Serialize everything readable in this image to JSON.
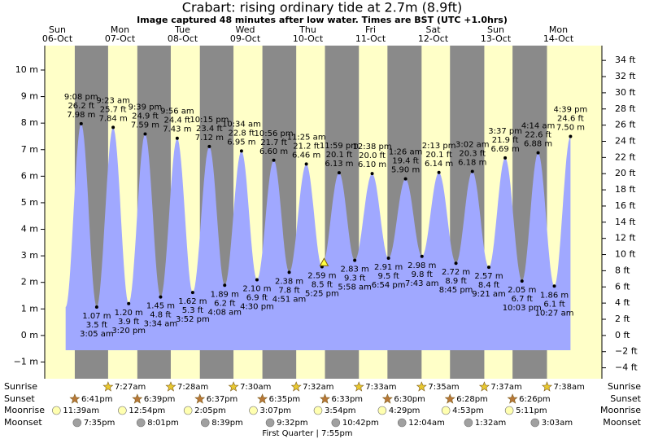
{
  "title": "Crabart: rising  ordinary tide at 2.7m (8.9ft)",
  "subtitle": "Image captured 48 minutes after low water. Times are BST (UTC +1.0hrs)",
  "chart_data": {
    "type": "area",
    "days": [
      {
        "name": "Sun",
        "date": "06-Oct"
      },
      {
        "name": "Mon",
        "date": "07-Oct"
      },
      {
        "name": "Tue",
        "date": "08-Oct"
      },
      {
        "name": "Wed",
        "date": "09-Oct"
      },
      {
        "name": "Thu",
        "date": "10-Oct"
      },
      {
        "name": "Fri",
        "date": "11-Oct"
      },
      {
        "name": "Sat",
        "date": "12-Oct"
      },
      {
        "name": "Sun",
        "date": "13-Oct"
      },
      {
        "name": "Mon",
        "date": "14-Oct"
      }
    ],
    "times": [
      "9:08 pm",
      "3:05 am",
      "9:23 am",
      "3:20 pm",
      "9:39 pm",
      "3:34 am",
      "9:56 am",
      "3:52 pm",
      "10:15 pm",
      "4:08 am",
      "10:34 am",
      "4:30 pm",
      "10:56 pm",
      "4:51 am",
      "11:25 am",
      "5:25 pm",
      "11:59 pm",
      "5:58 am",
      "12:38 pm",
      "6:54 pm",
      "1:26 am",
      "7:43 am",
      "2:13 pm",
      "8:45 pm",
      "3:02 am",
      "9:21 am",
      "3:37 pm",
      "10:03 pm",
      "4:14 am",
      "10:27 am",
      "4:39 pm"
    ],
    "values": [
      7.98,
      1.07,
      7.84,
      1.2,
      7.59,
      1.45,
      7.43,
      1.62,
      7.12,
      1.89,
      6.95,
      2.1,
      6.6,
      2.38,
      6.46,
      2.59,
      6.13,
      2.83,
      6.1,
      2.91,
      5.9,
      2.98,
      6.14,
      2.72,
      6.18,
      2.57,
      6.69,
      2.05,
      6.88,
      1.86,
      7.5
    ],
    "value_labels": [
      "7.98 m",
      "1.07 m",
      "7.84 m",
      "1.20 m",
      "7.59 m",
      "1.45 m",
      "7.43 m",
      "1.62 m",
      "7.12 m",
      "1.89 m",
      "6.95 m",
      "2.10 m",
      "6.60 m",
      "2.38 m",
      "6.46 m",
      "2.59 m",
      "6.13 m",
      "2.83 m",
      "6.10 m",
      "2.91 m",
      "5.90 m",
      "2.98 m",
      "6.14 m",
      "2.72 m",
      "6.18 m",
      "2.57 m",
      "6.69 m",
      "2.05 m",
      "6.88 m",
      "1.86 m",
      "7.50 m"
    ],
    "ft_labels": [
      "26.2 ft",
      "3.5 ft",
      "25.7 ft",
      "3.9 ft",
      "24.9 ft",
      "4.8 ft",
      "24.4 ft",
      "5.3 ft",
      "23.4 ft",
      "6.2 ft",
      "22.8 ft",
      "6.9 ft",
      "21.7 ft",
      "7.8 ft",
      "21.2 ft",
      "8.5 ft",
      "20.1 ft",
      "9.3 ft",
      "20.0 ft",
      "9.5 ft",
      "19.4 ft",
      "9.8 ft",
      "20.1 ft",
      "8.9 ft",
      "20.3 ft",
      "8.4 ft",
      "21.9 ft",
      "6.7 ft",
      "22.6 ft",
      "6.1 ft",
      "24.6 ft"
    ],
    "color": "#a0a8ff",
    "day_color": "#ffffc8",
    "night_color": "#8a8a8a",
    "day_label_color": "#e00000",
    "ylim": [
      -1.63,
      10.92
    ],
    "yticks": [
      {
        "value": -1,
        "label": "−1 m"
      },
      {
        "value": 0,
        "label": "0 m"
      },
      {
        "value": 1,
        "label": "1 m"
      },
      {
        "value": 2,
        "label": "2 m"
      },
      {
        "value": 3,
        "label": "3 m"
      },
      {
        "value": 4,
        "label": "4 m"
      },
      {
        "value": 5,
        "label": "5 m"
      },
      {
        "value": 6,
        "label": "6 m"
      },
      {
        "value": 7,
        "label": "7 m"
      },
      {
        "value": 8,
        "label": "8 m"
      },
      {
        "value": 9,
        "label": "9 m"
      },
      {
        "value": 10,
        "label": "10 m"
      }
    ],
    "y2lim": [
      -5.35,
      35.83
    ],
    "y2ticks": [
      {
        "value": -4,
        "label": "−4 ft"
      },
      {
        "value": -2,
        "label": "−2 ft"
      },
      {
        "value": 0,
        "label": "0 ft"
      },
      {
        "value": 2,
        "label": "2 ft"
      },
      {
        "value": 4,
        "label": "4 ft"
      },
      {
        "value": 6,
        "label": "6 ft"
      },
      {
        "value": 8,
        "label": "8 ft"
      },
      {
        "value": 10,
        "label": "10 ft"
      },
      {
        "value": 12,
        "label": "12 ft"
      },
      {
        "value": 14,
        "label": "14 ft"
      },
      {
        "value": 16,
        "label": "16 ft"
      },
      {
        "value": 18,
        "label": "18 ft"
      },
      {
        "value": 20,
        "label": "20 ft"
      },
      {
        "value": 22,
        "label": "22 ft"
      },
      {
        "value": 24,
        "label": "24 ft"
      },
      {
        "value": 26,
        "label": "26 ft"
      },
      {
        "value": 28,
        "label": "28 ft"
      },
      {
        "value": 30,
        "label": "30 ft"
      },
      {
        "value": 32,
        "label": "32 ft"
      },
      {
        "value": 34,
        "label": "34 ft"
      }
    ]
  },
  "almanac": [
    {
      "label": "Sunrise",
      "color": "#e8c830",
      "times": [
        "7:27am",
        "7:28am",
        "7:30am",
        "7:32am",
        "7:33am",
        "7:35am",
        "7:37am",
        "7:38am"
      ]
    },
    {
      "label": "Sunset",
      "color": "#b87838",
      "times": [
        "6:41pm",
        "6:39pm",
        "6:37pm",
        "6:35pm",
        "6:33pm",
        "6:30pm",
        "6:28pm",
        "6:26pm"
      ]
    },
    {
      "label": "Moonrise",
      "color": "#ffffb0",
      "times": [
        "11:39am",
        "12:54pm",
        "2:05pm",
        "3:07pm",
        "3:54pm",
        "4:29pm",
        "4:53pm",
        "5:11pm"
      ]
    },
    {
      "label": "Moonset",
      "color": "#a0a0a0",
      "times": [
        "7:35pm",
        "8:01pm",
        "8:39pm",
        "9:32pm",
        "10:42pm",
        "12:04am",
        "1:32am",
        "3:03am"
      ]
    }
  ],
  "moon_phase": "First Quarter | 7:55pm"
}
